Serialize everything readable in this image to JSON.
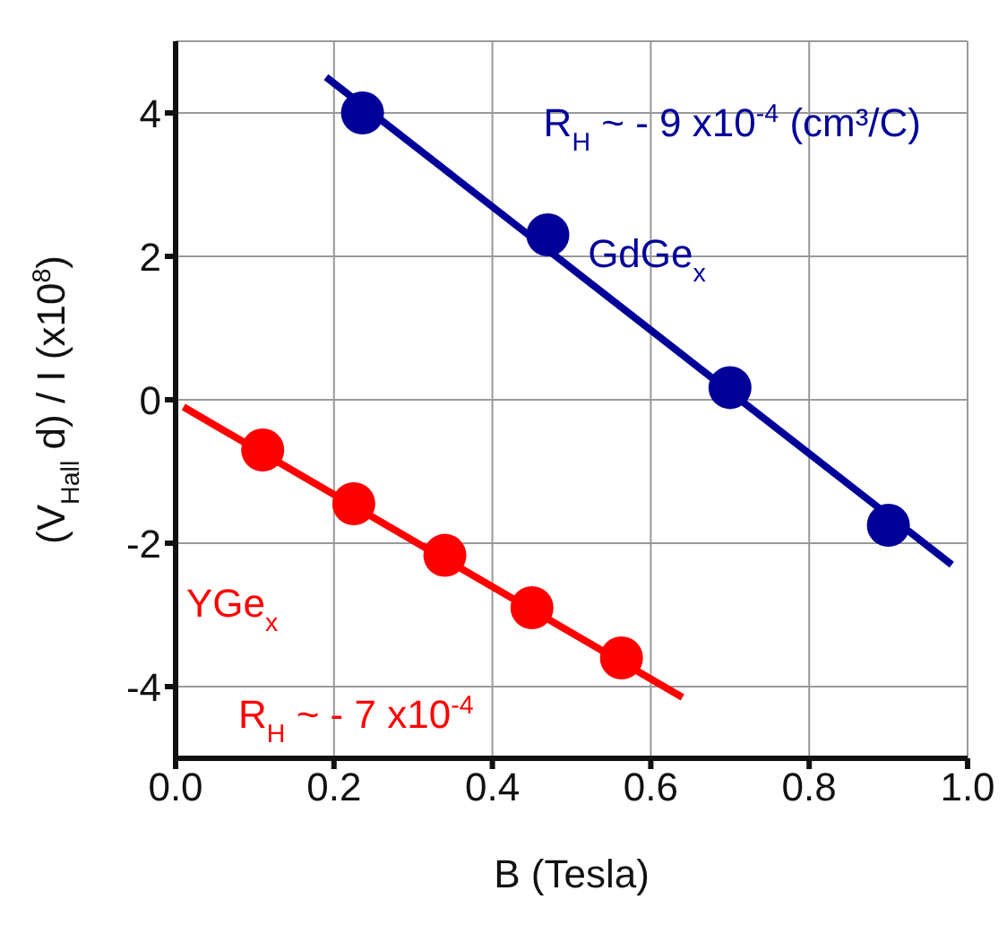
{
  "chart_data": {
    "type": "scatter",
    "xlabel": "B (Tesla)",
    "ylabel": "(V$_{Hall}$ d) / I (x10$^{8}$)",
    "xlim": [
      0,
      1
    ],
    "xticks": [
      {
        "value": 0,
        "label": "0.0"
      },
      0.2,
      0.4,
      0.6,
      0.8,
      {
        "value": 1,
        "label": "1.0"
      }
    ],
    "ylim": [
      -5,
      5
    ],
    "yticks": [
      -4,
      -2,
      0,
      2,
      4
    ],
    "grid": true,
    "legend": false,
    "series": [
      {
        "color": "#000099",
        "marker": "circle",
        "x": [
          0.236,
          0.47,
          0.7,
          0.9
        ],
        "values": [
          4.0,
          2.3,
          0.17,
          -1.75
        ]
      },
      {
        "type": "line",
        "color": "#000099",
        "x": [
          0.19,
          0.98
        ],
        "values": [
          4.5,
          -2.3
        ]
      },
      {
        "color": "#ff0000",
        "marker": "circle",
        "x": [
          0.11,
          0.225,
          0.34,
          0.45,
          0.563
        ],
        "values": [
          -0.7,
          -1.45,
          -2.17,
          -2.9,
          -3.6
        ]
      },
      {
        "type": "line",
        "color": "#ff0000",
        "x": [
          0.01,
          0.64
        ],
        "values": [
          -0.1,
          -4.15
        ]
      }
    ],
    "annotations": [
      "R$_{H}$ ~ - 9 x10$^{-4}$ (cm³/C)",
      "GdGe$_{x}$",
      "YGe$_{x}$",
      "R$_{H}$ ~ - 7 x10$^{-4}$"
    ]
  }
}
